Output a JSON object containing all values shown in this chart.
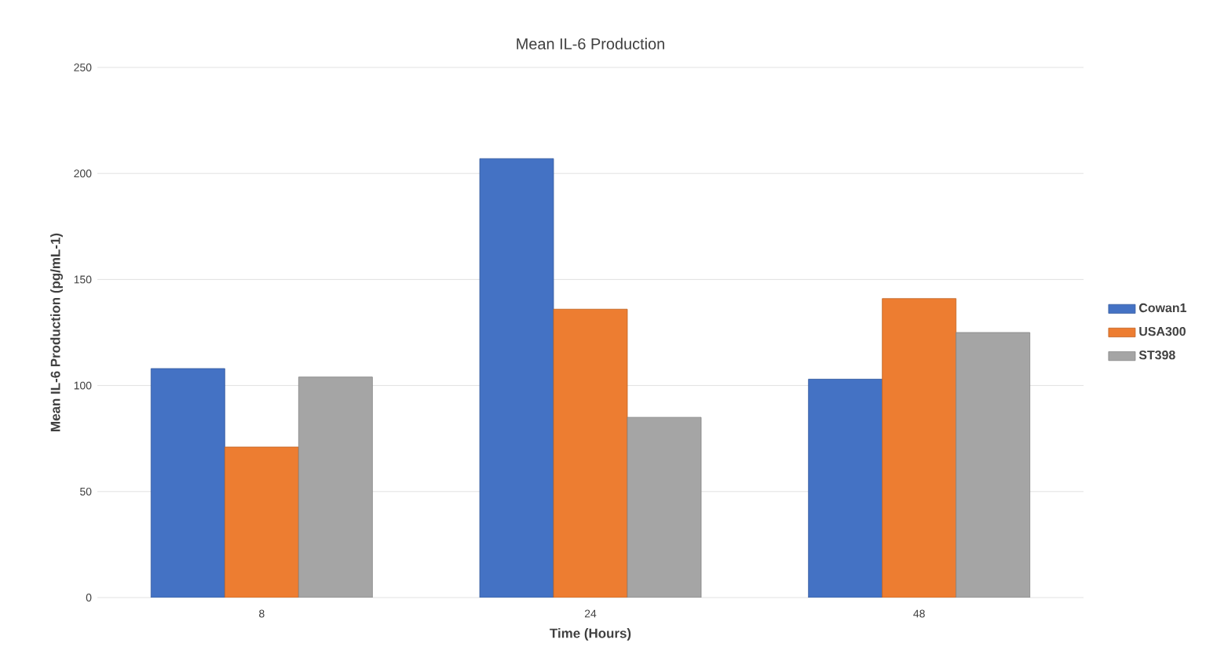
{
  "chart_data": {
    "type": "bar",
    "title": "Mean IL-6 Production",
    "xlabel": "Time (Hours)",
    "ylabel": "Mean IL-6 Production (pg/mL-1)",
    "categories": [
      "8",
      "24",
      "48"
    ],
    "series": [
      {
        "name": "Cowan1",
        "color": "#4472c4",
        "values": [
          108,
          207,
          103
        ]
      },
      {
        "name": "USA300",
        "color": "#ed7d31",
        "values": [
          71,
          136,
          141
        ]
      },
      {
        "name": "ST398",
        "color": "#a5a5a5",
        "values": [
          104,
          85,
          125
        ]
      }
    ],
    "ylim": [
      0,
      250
    ],
    "yticks": [
      0,
      50,
      100,
      150,
      200,
      250
    ],
    "grid": "y",
    "legend": "right"
  }
}
